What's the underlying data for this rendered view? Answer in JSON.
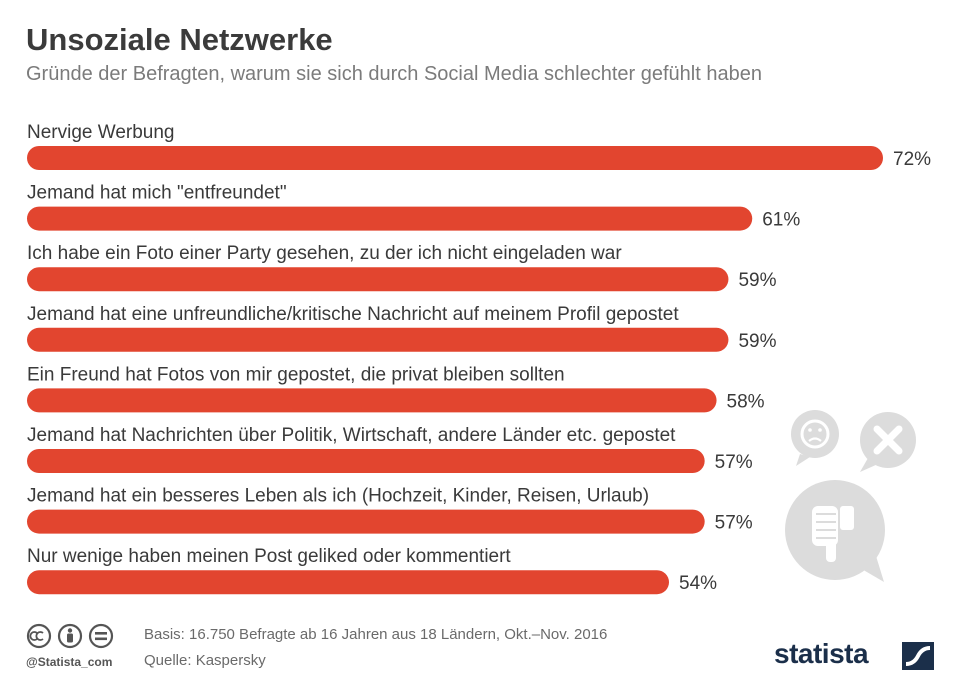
{
  "header": {
    "title": "Unsoziale Netzwerke",
    "subtitle": "Gründe der Befragten, warum sie sich durch Social Media schlechter gefühlt haben"
  },
  "chart_data": {
    "type": "bar",
    "orientation": "horizontal",
    "categories": [
      "Nervige Werbung",
      "Jemand hat mich \"entfreundet\"",
      "Ich habe ein Foto einer Party gesehen, zu der ich nicht eingeladen war",
      "Jemand hat eine unfreundliche/kritische Nachricht auf meinem Profil gepostet",
      "Ein Freund hat Fotos von mir gepostet, die privat bleiben sollten",
      "Jemand hat Nachrichten über Politik, Wirtschaft, andere Länder etc. gepostet",
      "Jemand hat ein besseres Leben als ich (Hochzeit, Kinder, Reisen, Urlaub)",
      "Nur wenige haben meinen Post geliked oder kommentiert"
    ],
    "values": [
      72,
      61,
      59,
      59,
      58,
      57,
      57,
      54
    ],
    "value_labels": [
      "72%",
      "61%",
      "59%",
      "59%",
      "58%",
      "57%",
      "57%",
      "54%"
    ],
    "unit": "%",
    "xlim": [
      0,
      72
    ],
    "bar_color": "#e2452f",
    "grid": false,
    "legend": "none"
  },
  "footer": {
    "basis": "Basis: 16.750 Befragte ab 16 Jahren aus 18 Ländern, Okt.–Nov. 2016",
    "source": "Quelle: Kaspersky",
    "handle": "@Statista_com",
    "brand": "statista"
  },
  "icons": [
    "creative-commons-icon",
    "attribution-icon",
    "no-derivatives-icon",
    "sad-face-bubble-icon",
    "close-bubble-icon",
    "thumbs-down-bubble-icon",
    "statista-logo-icon"
  ]
}
